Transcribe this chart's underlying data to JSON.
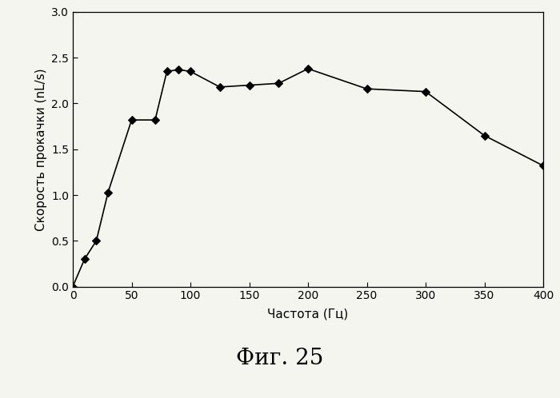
{
  "x": [
    0,
    10,
    20,
    30,
    50,
    70,
    80,
    90,
    100,
    125,
    150,
    175,
    200,
    250,
    300,
    350,
    400
  ],
  "y": [
    0.0,
    0.3,
    0.5,
    1.03,
    1.82,
    1.82,
    2.35,
    2.37,
    2.35,
    2.18,
    2.2,
    2.22,
    2.38,
    2.16,
    2.13,
    1.65,
    1.32
  ],
  "xlabel": "Частота (Гц)",
  "ylabel": "Скорость прокачки (nL/s)",
  "caption": "Фиг. 25",
  "xlim": [
    0,
    400
  ],
  "ylim": [
    0.0,
    3.0
  ],
  "yticks": [
    0.0,
    0.5,
    1.0,
    1.5,
    2.0,
    2.5,
    3.0
  ],
  "xticks": [
    0,
    50,
    100,
    150,
    200,
    250,
    300,
    350,
    400
  ],
  "line_color": "#000000",
  "marker": "D",
  "marker_size": 5,
  "line_width": 1.2,
  "bg_color": "#f5f5f0",
  "caption_fontsize": 20,
  "label_fontsize": 11,
  "tick_fontsize": 10
}
